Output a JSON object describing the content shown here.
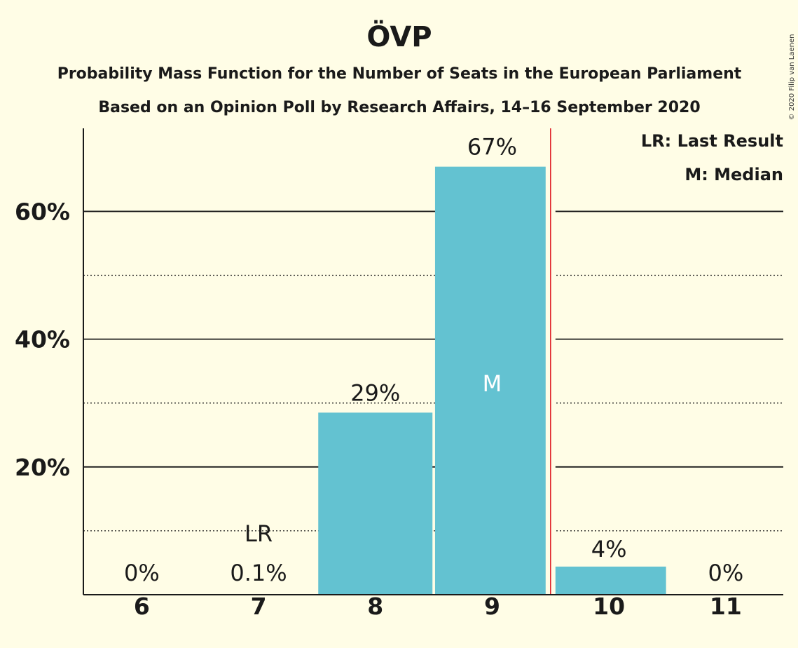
{
  "chart_data": {
    "type": "bar",
    "title": "ÖVP",
    "subtitle_line1": "Probability Mass Function for the Number of Seats in the European Parliament",
    "subtitle_line2": "Based on an Opinion Poll by Research Affairs, 14–16 September 2020",
    "categories": [
      "6",
      "7",
      "8",
      "9",
      "10",
      "11"
    ],
    "values": [
      0,
      0.1,
      28.5,
      67,
      4.4,
      0
    ],
    "value_labels": [
      "0%",
      "0.1%",
      "29%",
      "67%",
      "4%",
      "0%"
    ],
    "ylim": [
      0,
      73
    ],
    "yticks_major": [
      20,
      40,
      60
    ],
    "ytick_labels": [
      "20%",
      "40%",
      "60%"
    ],
    "yticks_minor": [
      10,
      30,
      50
    ],
    "last_result_seat": "7",
    "last_result_label": "LR",
    "median_seat": "9",
    "median_label": "M",
    "threshold_line_after": "9",
    "legend": [
      "LR: Last Result",
      "M: Median"
    ],
    "legend_position": "top-right",
    "bar_color": "#63C2D1",
    "threshold_color": "#E0242B"
  },
  "copyright": "© 2020 Filip van Laenen"
}
